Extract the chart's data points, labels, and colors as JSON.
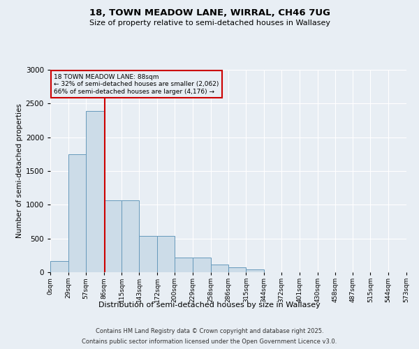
{
  "title_line1": "18, TOWN MEADOW LANE, WIRRAL, CH46 7UG",
  "title_line2": "Size of property relative to semi-detached houses in Wallasey",
  "xlabel": "Distribution of semi-detached houses by size in Wallasey",
  "ylabel": "Number of semi-detached properties",
  "footnote1": "Contains HM Land Registry data © Crown copyright and database right 2025.",
  "footnote2": "Contains public sector information licensed under the Open Government Licence v3.0.",
  "bar_color": "#ccdce8",
  "bar_edge_color": "#6699bb",
  "property_size": 88,
  "property_label": "18 TOWN MEADOW LANE: 88sqm",
  "pct_smaller": 32,
  "pct_smaller_count": 2062,
  "pct_larger": 66,
  "pct_larger_count": 4176,
  "annotation_box_color": "#cc0000",
  "vline_color": "#cc0000",
  "bin_edges": [
    0,
    29,
    57,
    86,
    115,
    143,
    172,
    200,
    229,
    258,
    286,
    315,
    344,
    372,
    401,
    430,
    458,
    487,
    515,
    544,
    573
  ],
  "bin_labels": [
    "0sqm",
    "29sqm",
    "57sqm",
    "86sqm",
    "115sqm",
    "143sqm",
    "172sqm",
    "200sqm",
    "229sqm",
    "258sqm",
    "286sqm",
    "315sqm",
    "344sqm",
    "372sqm",
    "401sqm",
    "430sqm",
    "458sqm",
    "487sqm",
    "515sqm",
    "544sqm",
    "573sqm"
  ],
  "bar_heights": [
    170,
    1750,
    2390,
    1070,
    1070,
    540,
    540,
    220,
    220,
    115,
    75,
    40,
    0,
    0,
    0,
    0,
    0,
    0,
    0,
    0
  ],
  "ylim": [
    0,
    3000
  ],
  "yticks": [
    0,
    500,
    1000,
    1500,
    2000,
    2500,
    3000
  ],
  "background_color": "#e8eef4",
  "grid_color": "#ffffff"
}
